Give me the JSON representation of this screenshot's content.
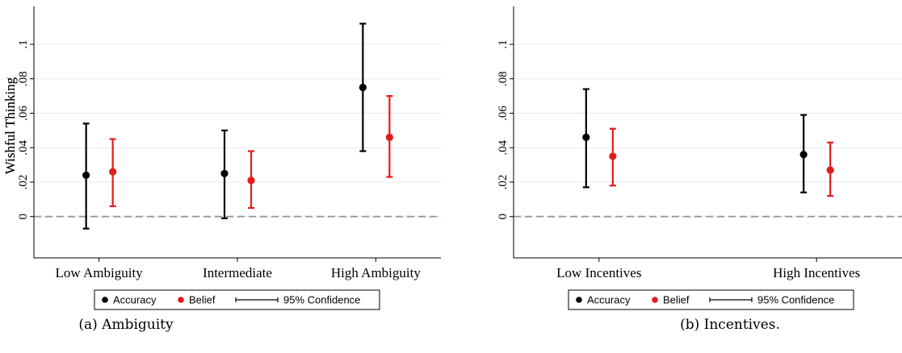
{
  "colors": {
    "accuracy": "#000000",
    "belief": "#e41a1c",
    "zero_line": "#999999",
    "grid": "#e8e8e8"
  },
  "chart_data": [
    {
      "type": "scatter",
      "subtype": "point-with-error-bars",
      "caption": "(a) Ambiguity",
      "ylabel": "Wishful Thinking",
      "ylim": [
        -0.024,
        0.122
      ],
      "yticks": [
        0,
        0.02,
        0.04,
        0.06,
        0.08,
        0.1
      ],
      "ytick_labels": [
        "0",
        ".02",
        ".04",
        ".06",
        ".08",
        ".1"
      ],
      "grid": true,
      "reference_line": {
        "y": 0,
        "style": "dashed"
      },
      "categories": [
        "Low Ambiguity",
        "Intermediate",
        "High Ambiguity"
      ],
      "series": [
        {
          "name": "Accuracy",
          "color": "#000000",
          "values": [
            0.024,
            0.025,
            0.075
          ],
          "ci_low": [
            -0.007,
            -0.001,
            0.038
          ],
          "ci_high": [
            0.054,
            0.05,
            0.112
          ]
        },
        {
          "name": "Belief",
          "color": "#e41a1c",
          "values": [
            0.026,
            0.021,
            0.046
          ],
          "ci_low": [
            0.006,
            0.005,
            0.023
          ],
          "ci_high": [
            0.045,
            0.038,
            0.07
          ]
        }
      ],
      "legend": {
        "position": "bottom",
        "items": [
          "Accuracy",
          "Belief",
          "95% Confidence"
        ]
      }
    },
    {
      "type": "scatter",
      "subtype": "point-with-error-bars",
      "caption": "(b) Incentives.",
      "ylabel": "Wishful Thinking",
      "ylim": [
        -0.024,
        0.122
      ],
      "yticks": [
        0,
        0.02,
        0.04,
        0.06,
        0.08,
        0.1
      ],
      "ytick_labels": [
        "0",
        ".02",
        ".04",
        ".06",
        ".08",
        ".1"
      ],
      "grid": true,
      "reference_line": {
        "y": 0,
        "style": "dashed"
      },
      "categories": [
        "Low Incentives",
        "High Incentives"
      ],
      "series": [
        {
          "name": "Accuracy",
          "color": "#000000",
          "values": [
            0.046,
            0.036
          ],
          "ci_low": [
            0.017,
            0.014
          ],
          "ci_high": [
            0.074,
            0.059
          ]
        },
        {
          "name": "Belief",
          "color": "#e41a1c",
          "values": [
            0.035,
            0.027
          ],
          "ci_low": [
            0.018,
            0.012
          ],
          "ci_high": [
            0.051,
            0.043
          ]
        }
      ],
      "legend": {
        "position": "bottom",
        "items": [
          "Accuracy",
          "Belief",
          "95% Confidence"
        ]
      }
    }
  ]
}
